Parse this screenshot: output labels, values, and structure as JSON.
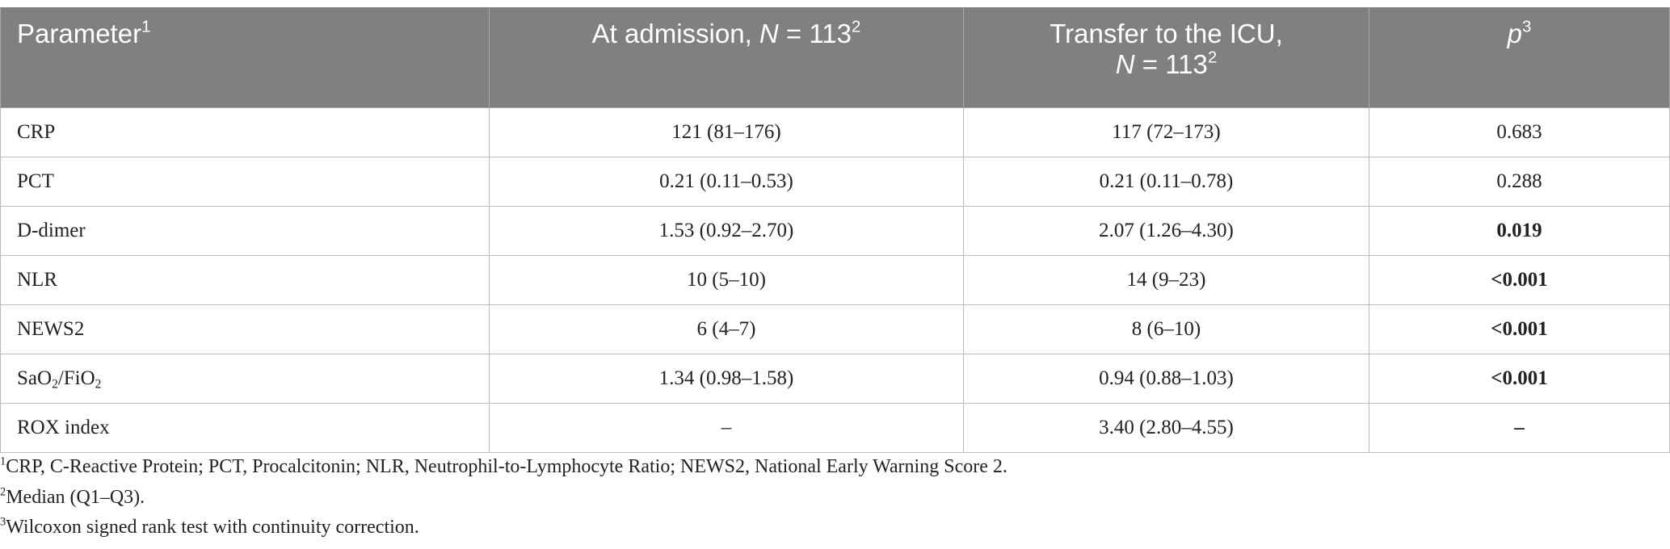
{
  "table": {
    "header": [
      [
        {
          "t": "Parameter"
        },
        {
          "t": "1",
          "s": "sup"
        }
      ],
      [
        {
          "t": "At admission, "
        },
        {
          "t": "N",
          "s": "i"
        },
        {
          "t": " = 113"
        },
        {
          "t": "2",
          "s": "sup"
        }
      ],
      [
        {
          "t": "Transfer to the ICU,"
        },
        {
          "t": "N",
          "s": "i",
          "newline": true
        },
        {
          "t": " = 113"
        },
        {
          "t": "2",
          "s": "sup"
        }
      ],
      [
        {
          "t": "p",
          "s": "i"
        },
        {
          "t": "3",
          "s": "sup"
        }
      ]
    ],
    "rows": [
      [
        [
          {
            "t": "CRP"
          }
        ],
        [
          {
            "t": "121 (81–176)"
          }
        ],
        [
          {
            "t": "117 (72–173)"
          }
        ],
        [
          {
            "t": "0.683"
          }
        ]
      ],
      [
        [
          {
            "t": "PCT"
          }
        ],
        [
          {
            "t": "0.21 (0.11–0.53)"
          }
        ],
        [
          {
            "t": "0.21 (0.11–0.78)"
          }
        ],
        [
          {
            "t": "0.288"
          }
        ]
      ],
      [
        [
          {
            "t": "D-dimer"
          }
        ],
        [
          {
            "t": "1.53 (0.92–2.70)"
          }
        ],
        [
          {
            "t": "2.07 (1.26–4.30)"
          }
        ],
        [
          {
            "t": "0.019",
            "s": "b"
          }
        ]
      ],
      [
        [
          {
            "t": "NLR"
          }
        ],
        [
          {
            "t": "10 (5–10)"
          }
        ],
        [
          {
            "t": "14 (9–23)"
          }
        ],
        [
          {
            "t": "<0.001",
            "s": "b"
          }
        ]
      ],
      [
        [
          {
            "t": "NEWS2"
          }
        ],
        [
          {
            "t": "6 (4–7)"
          }
        ],
        [
          {
            "t": "8 (6–10)"
          }
        ],
        [
          {
            "t": "<0.001",
            "s": "b"
          }
        ]
      ],
      [
        [
          {
            "t": "SaO"
          },
          {
            "t": "2",
            "s": "sub"
          },
          {
            "t": "/FiO"
          },
          {
            "t": "2",
            "s": "sub"
          }
        ],
        [
          {
            "t": "1.34 (0.98–1.58)"
          }
        ],
        [
          {
            "t": "0.94 (0.88–1.03)"
          }
        ],
        [
          {
            "t": "<0.001",
            "s": "b"
          }
        ]
      ],
      [
        [
          {
            "t": "ROX index"
          }
        ],
        [
          {
            "t": "–"
          }
        ],
        [
          {
            "t": "3.40 (2.80–4.55)"
          }
        ],
        [
          {
            "t": "–",
            "s": "b"
          }
        ]
      ]
    ]
  },
  "footnotes": [
    {
      "mark": "1",
      "text": "CRP, C-Reactive Protein; PCT, Procalcitonin; NLR, Neutrophil-to-Lymphocyte Ratio; NEWS2, National Early Warning Score 2."
    },
    {
      "mark": "2",
      "text": "Median (Q1–Q3)."
    },
    {
      "mark": "3",
      "text": "Wilcoxon signed rank test with continuity correction."
    }
  ]
}
